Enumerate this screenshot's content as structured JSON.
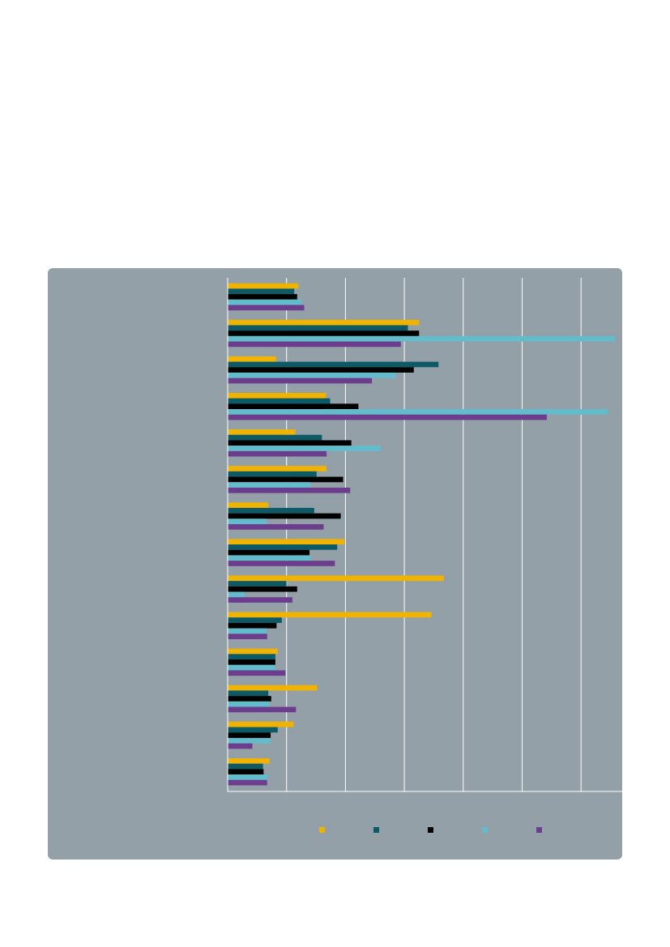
{
  "chart_data": {
    "type": "bar",
    "orientation": "horizontal",
    "title": "",
    "xlabel": "",
    "ylabel": "",
    "categories": [
      "",
      "",
      "",
      "",
      "",
      "",
      "",
      "",
      "",
      "",
      "",
      "",
      "",
      ""
    ],
    "xlim": [
      0,
      67
    ],
    "grid": true,
    "legend_position": "bottom",
    "colors": [
      "#f0b400",
      "#0d5a66",
      "#000000",
      "#62bccb",
      "#6b3d8c"
    ],
    "series": [
      {
        "values": [
          12.0,
          32.5,
          8.2,
          16.7,
          11.5,
          16.8,
          6.9,
          19.8,
          36.7,
          34.6,
          8.5,
          15.2,
          11.2,
          7.1
        ]
      },
      {
        "values": [
          11.3,
          30.6,
          35.8,
          17.4,
          16.0,
          15.1,
          14.7,
          18.6,
          10.0,
          9.2,
          8.1,
          6.9,
          8.5,
          6.0
        ]
      },
      {
        "values": [
          11.8,
          32.5,
          31.6,
          22.2,
          21.0,
          19.6,
          19.2,
          13.9,
          11.8,
          8.3,
          8.1,
          7.4,
          7.3,
          6.1
        ]
      },
      {
        "values": [
          12.5,
          65.8,
          28.5,
          64.6,
          26.0,
          14.1,
          6.6,
          14.1,
          2.9,
          6.6,
          8.1,
          7.1,
          7.3,
          6.8
        ]
      },
      {
        "values": [
          13.0,
          29.4,
          24.5,
          54.2,
          16.8,
          20.8,
          16.3,
          18.2,
          11.0,
          6.7,
          9.8,
          11.6,
          4.2,
          6.7
        ]
      }
    ]
  }
}
